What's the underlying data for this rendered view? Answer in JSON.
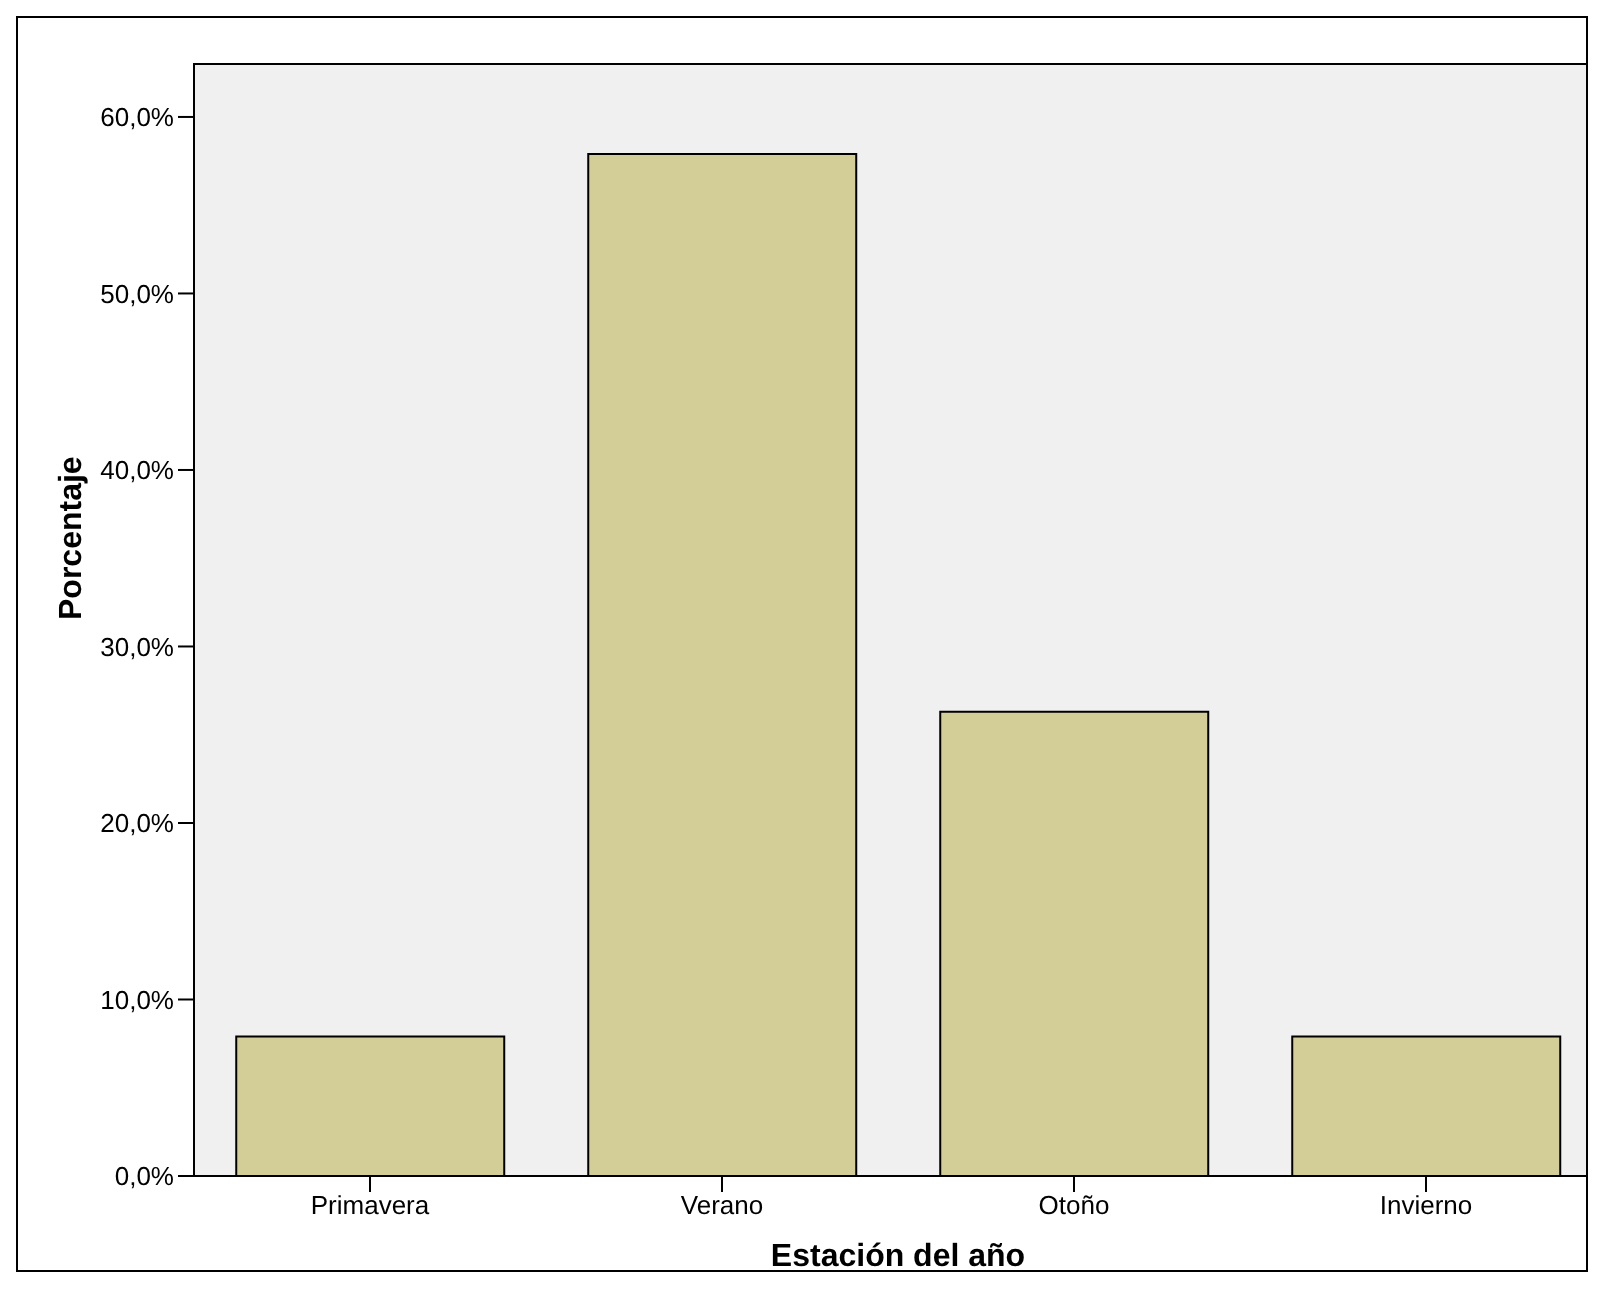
{
  "chart_data": {
    "type": "bar",
    "xlabel": "Estación del año",
    "ylabel": "Porcentaje",
    "categories": [
      "Primavera",
      "Verano",
      "Otoño",
      "Invierno"
    ],
    "values": [
      7.9,
      57.9,
      26.3,
      7.9
    ],
    "color": "#d3cd97",
    "ylim": [
      0,
      63
    ],
    "yticks": [
      {
        "value": 0,
        "label": "0,0%"
      },
      {
        "value": 10,
        "label": "10,0%"
      },
      {
        "value": 20,
        "label": "20,0%"
      },
      {
        "value": 30,
        "label": "30,0%"
      },
      {
        "value": 40,
        "label": "40,0%"
      },
      {
        "value": 50,
        "label": "50,0%"
      },
      {
        "value": 60,
        "label": "60,0%"
      }
    ]
  }
}
